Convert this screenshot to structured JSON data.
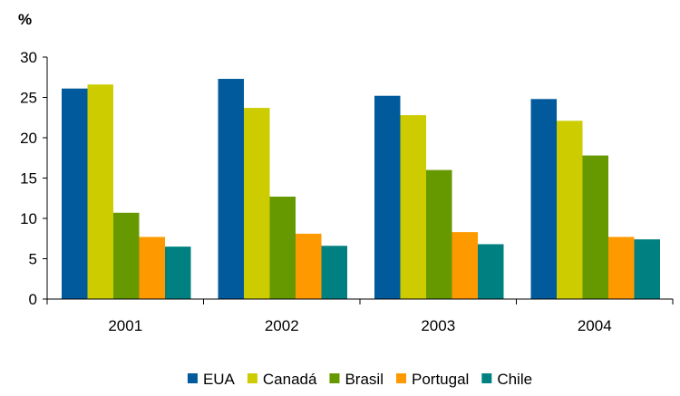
{
  "chart_data": {
    "type": "bar",
    "ylabel": "%",
    "ylim": [
      0,
      30
    ],
    "yticks": [
      0,
      5,
      10,
      15,
      20,
      25,
      30
    ],
    "categories": [
      "2001",
      "2002",
      "2003",
      "2004"
    ],
    "series": [
      {
        "name": "EUA",
        "color": "#005A9C",
        "values": [
          26.1,
          27.3,
          25.2,
          24.8
        ]
      },
      {
        "name": "Canadá",
        "color": "#CCCC00",
        "values": [
          26.6,
          23.7,
          22.8,
          22.1
        ]
      },
      {
        "name": "Brasil",
        "color": "#669900",
        "values": [
          10.7,
          12.7,
          16.0,
          17.8
        ]
      },
      {
        "name": "Portugal",
        "color": "#FF9900",
        "values": [
          7.7,
          8.1,
          8.3,
          7.7
        ]
      },
      {
        "name": "Chile",
        "color": "#008080",
        "values": [
          6.5,
          6.6,
          6.8,
          7.4
        ]
      }
    ],
    "grid": false,
    "legend_position": "bottom"
  }
}
